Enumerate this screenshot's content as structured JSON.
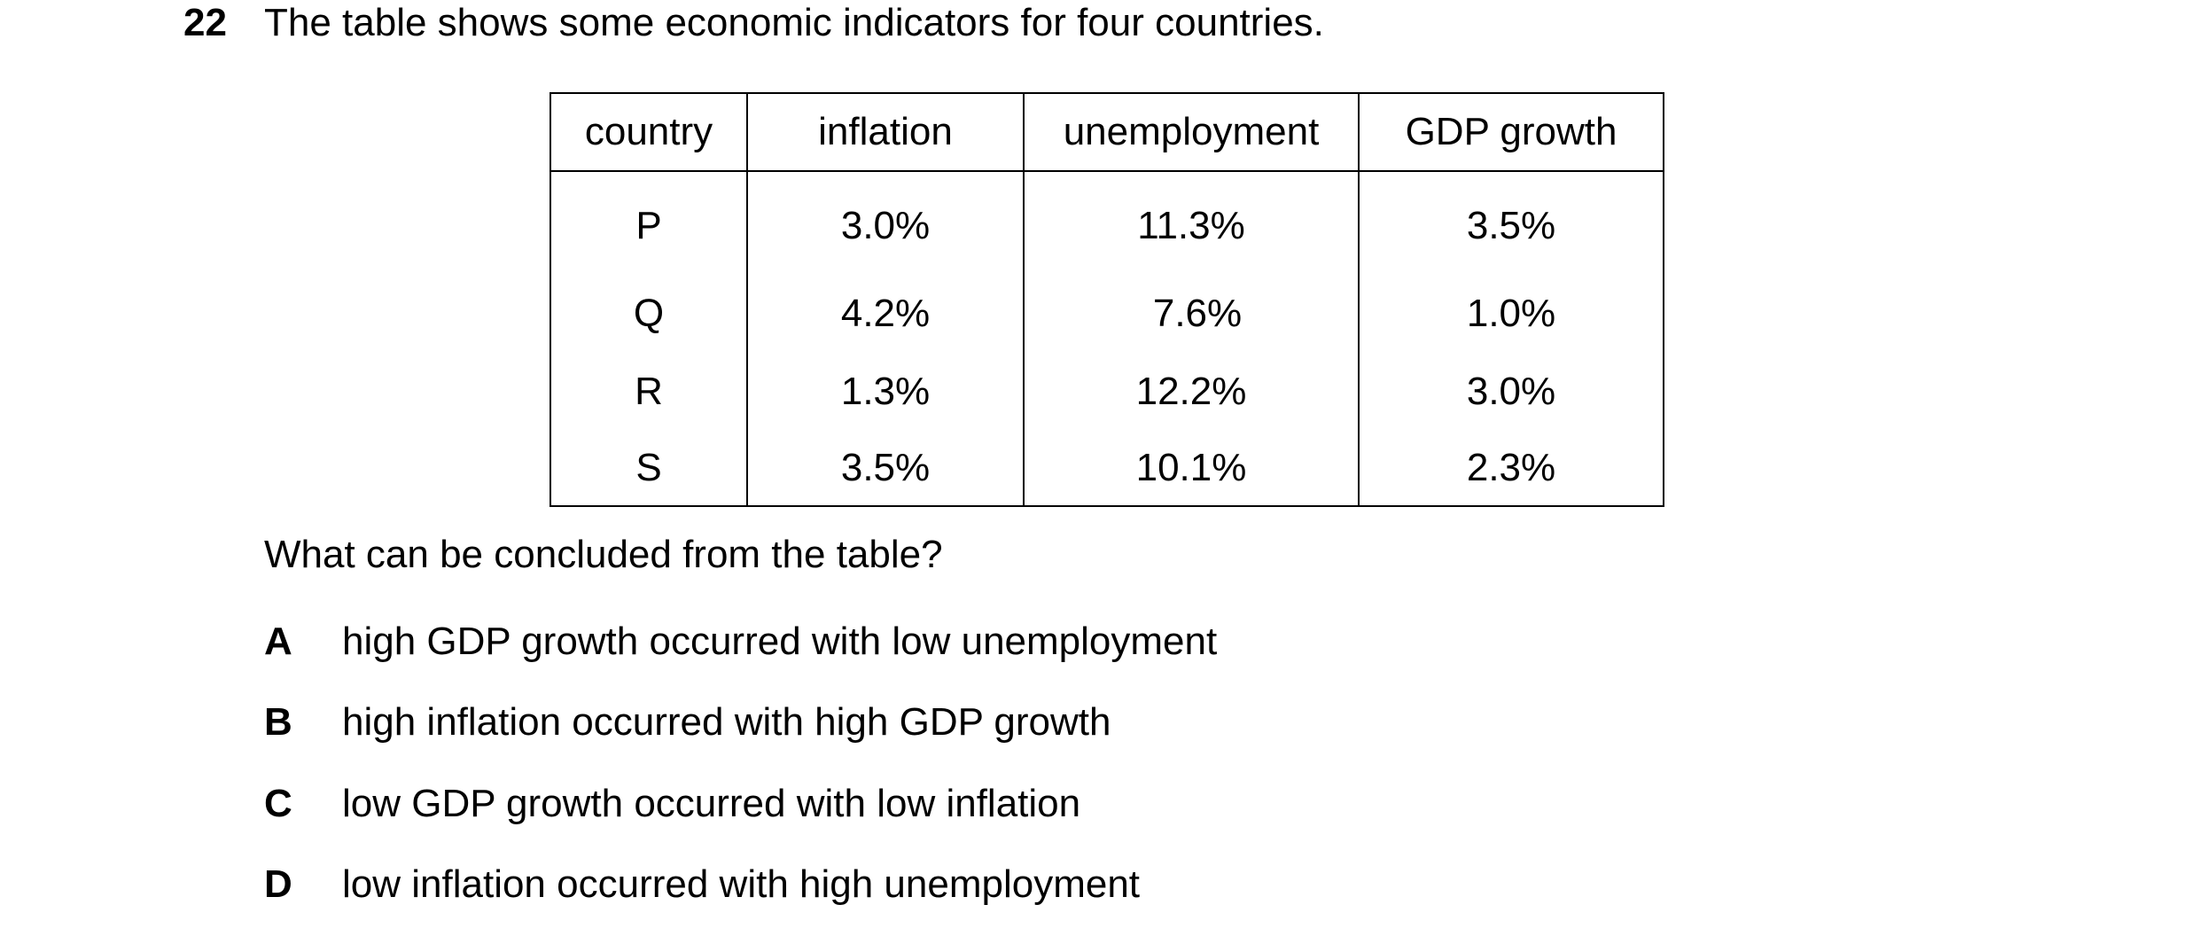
{
  "question": {
    "number": "22",
    "stem": "The table shows some economic indicators for four countries."
  },
  "table": {
    "headers": [
      "country",
      "inflation",
      "unemployment",
      "GDP growth"
    ],
    "rows": [
      [
        "P",
        "3.0%",
        "11.3%",
        "3.5%"
      ],
      [
        "Q",
        "4.2%",
        "7.6%",
        "1.0%"
      ],
      [
        "R",
        "1.3%",
        "12.2%",
        "3.0%"
      ],
      [
        "S",
        "3.5%",
        "10.1%",
        "2.3%"
      ]
    ]
  },
  "prompt": "What can be concluded from the table?",
  "options": [
    {
      "letter": "A",
      "text": "high GDP growth occurred with low unemployment"
    },
    {
      "letter": "B",
      "text": "high inflation occurred with high GDP growth"
    },
    {
      "letter": "C",
      "text": "low GDP growth occurred with low inflation"
    },
    {
      "letter": "D",
      "text": "low inflation occurred with high unemployment"
    }
  ]
}
